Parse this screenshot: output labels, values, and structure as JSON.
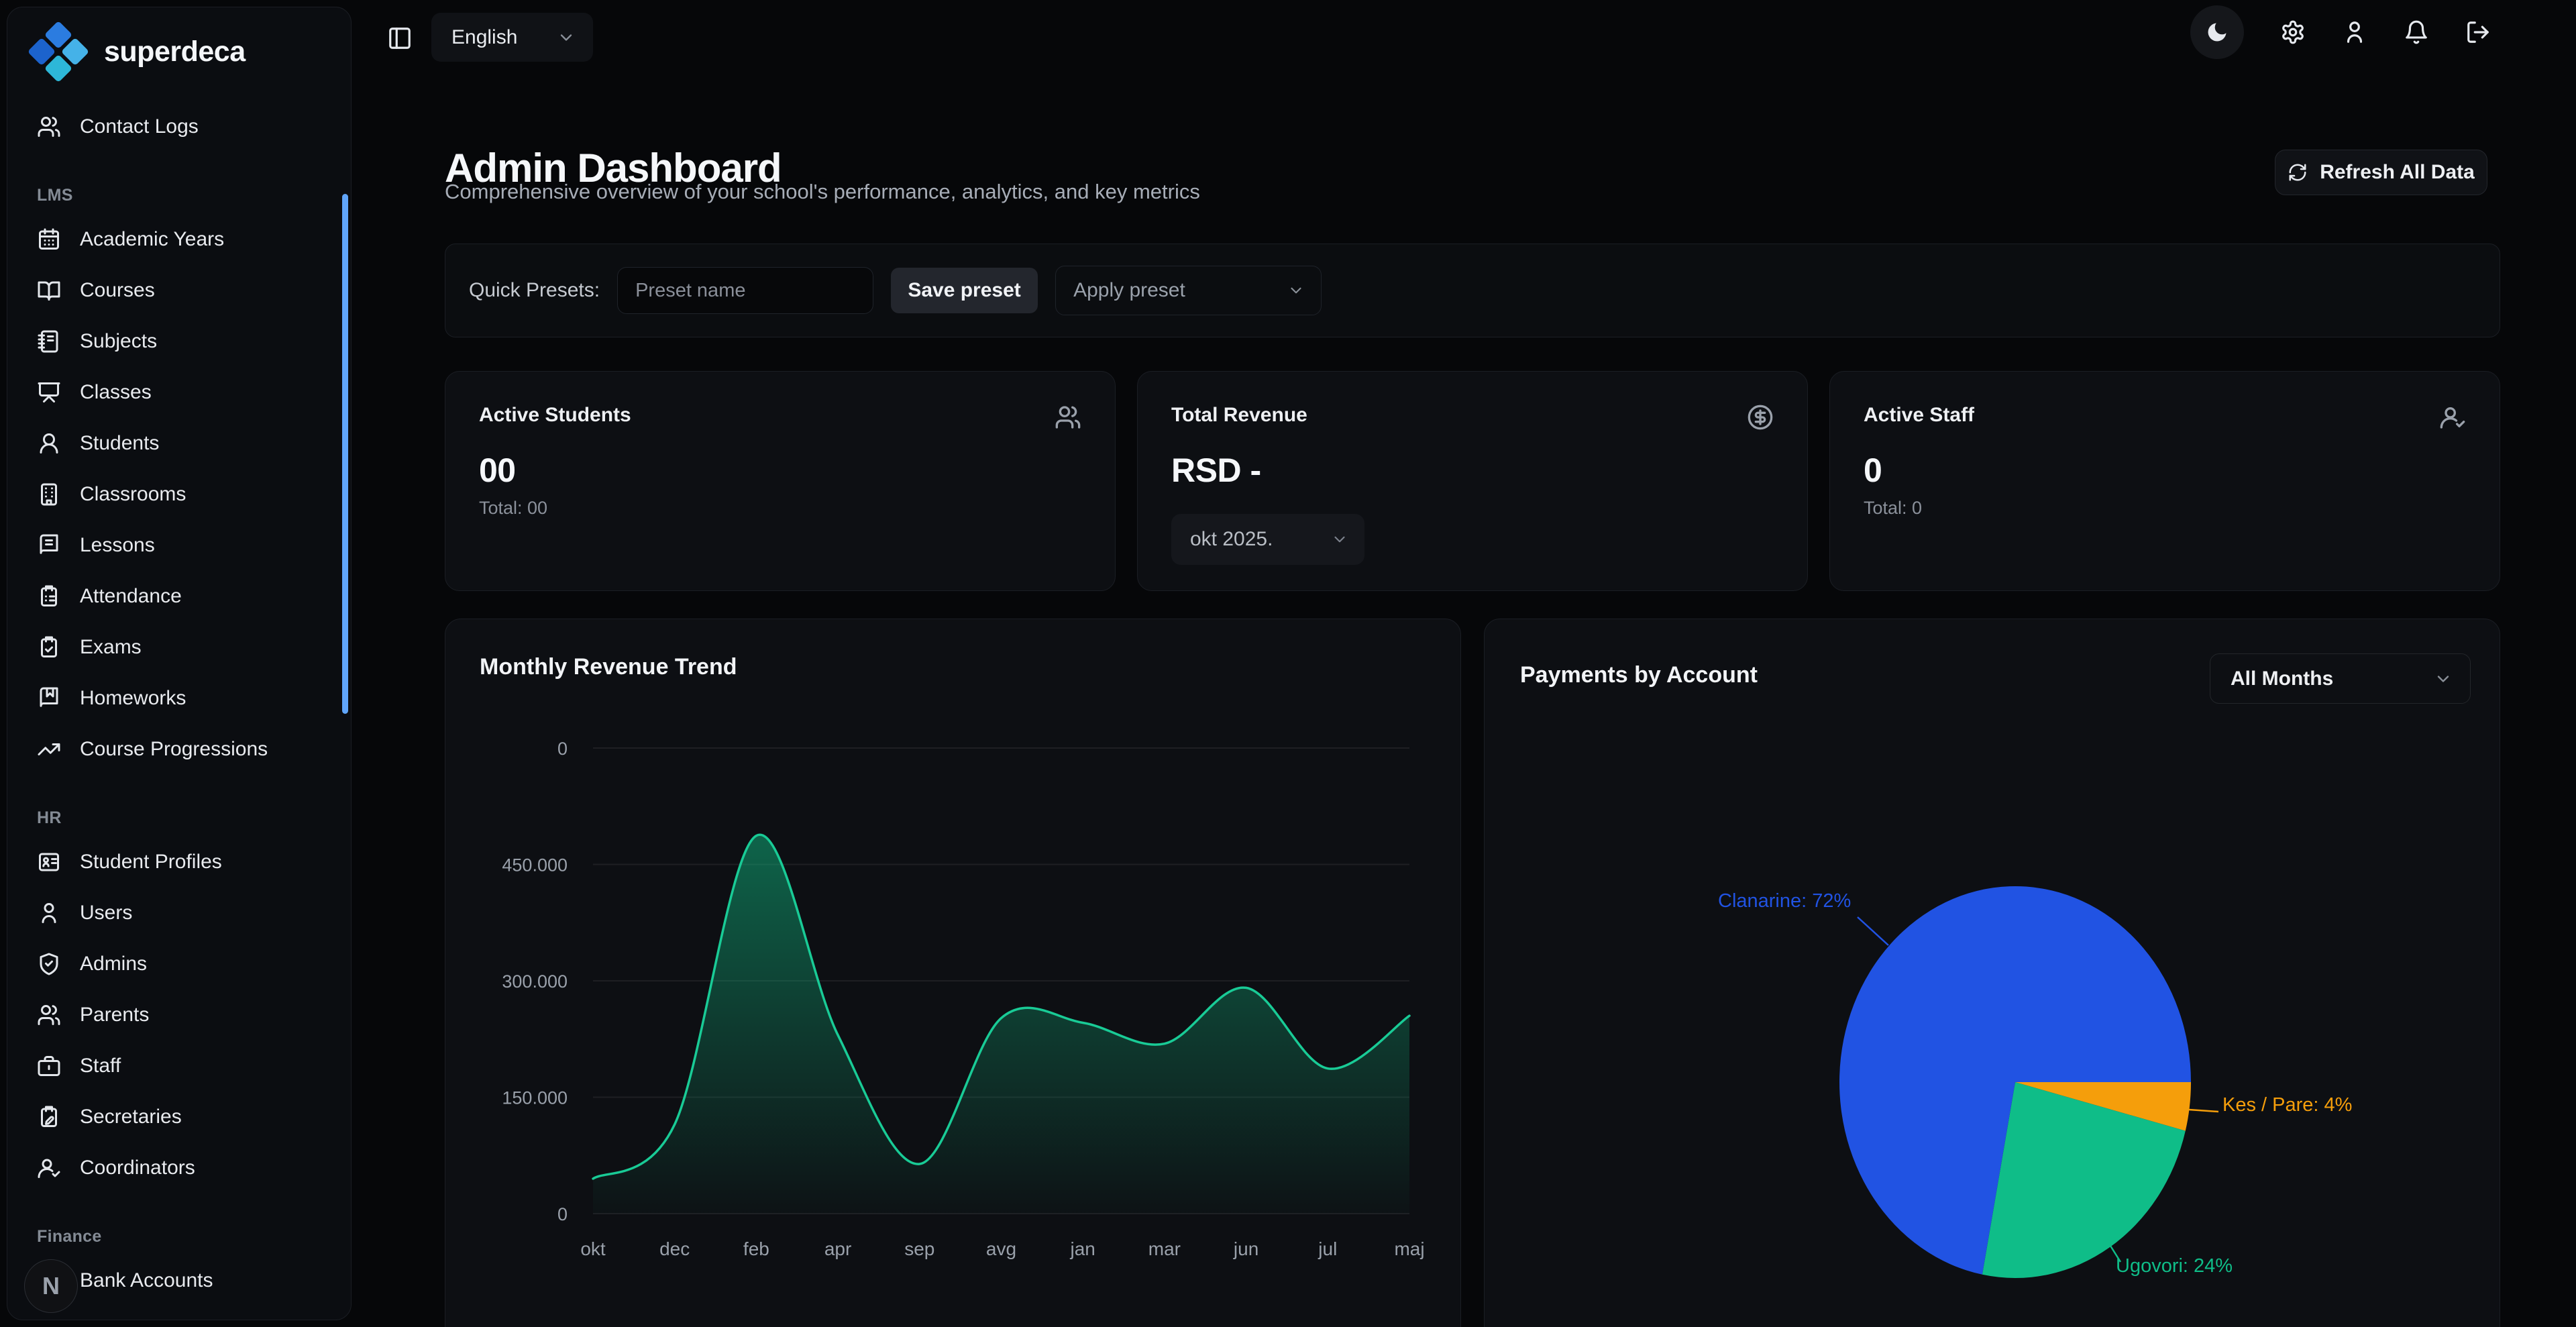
{
  "sidebar": {
    "logo_text": "superdeca",
    "top_items": [
      {
        "icon": "users",
        "label": "Contact Logs"
      }
    ],
    "sections": [
      {
        "title": "LMS",
        "items": [
          {
            "icon": "calendar",
            "label": "Academic Years"
          },
          {
            "icon": "book-open",
            "label": "Courses"
          },
          {
            "icon": "notebook",
            "label": "Subjects"
          },
          {
            "icon": "presentation",
            "label": "Classes"
          },
          {
            "icon": "user-round",
            "label": "Students"
          },
          {
            "icon": "building",
            "label": "Classrooms"
          },
          {
            "icon": "book-text",
            "label": "Lessons"
          },
          {
            "icon": "clipboard-list",
            "label": "Attendance"
          },
          {
            "icon": "clipboard-check",
            "label": "Exams"
          },
          {
            "icon": "book-marked",
            "label": "Homeworks"
          },
          {
            "icon": "trending-up",
            "label": "Course Progressions"
          }
        ]
      },
      {
        "title": "HR",
        "items": [
          {
            "icon": "id-card",
            "label": "Student Profiles"
          },
          {
            "icon": "user",
            "label": "Users"
          },
          {
            "icon": "shield-check",
            "label": "Admins"
          },
          {
            "icon": "users",
            "label": "Parents"
          },
          {
            "icon": "briefcase",
            "label": "Staff"
          },
          {
            "icon": "clipboard-pen",
            "label": "Secretaries"
          },
          {
            "icon": "user-check",
            "label": "Coordinators"
          }
        ]
      },
      {
        "title": "Finance",
        "items": [
          {
            "icon": "landmark",
            "label": "Bank Accounts"
          }
        ]
      }
    ]
  },
  "topbar": {
    "sidebar_toggle_icon": "panel-left",
    "language": "English",
    "language_chevron_icon": "chevron-down",
    "actions": [
      {
        "icon": "moon",
        "name": "theme-toggle-button",
        "circle": true
      },
      {
        "icon": "settings",
        "name": "settings-button"
      },
      {
        "icon": "user",
        "name": "profile-button"
      },
      {
        "icon": "bell",
        "name": "notifications-button"
      },
      {
        "icon": "log-out",
        "name": "logout-button"
      }
    ]
  },
  "header": {
    "title": "Admin Dashboard",
    "subtitle": "Comprehensive overview of your school's performance, analytics, and key metrics",
    "refresh_label": "Refresh All Data",
    "refresh_icon": "refresh"
  },
  "presets": {
    "label": "Quick Presets:",
    "input_placeholder": "Preset name",
    "save_label": "Save preset",
    "apply_label": "Apply preset"
  },
  "stats": [
    {
      "title": "Active Students",
      "icon": "users",
      "value": "00",
      "total": "Total: 00"
    },
    {
      "title": "Total Revenue",
      "icon": "dollar-circle",
      "value": "RSD -",
      "month_selector": "okt 2025."
    },
    {
      "title": "Active Staff",
      "icon": "user-check",
      "value": "0",
      "total": "Total: 0"
    }
  ],
  "charts": {
    "revenue": {
      "title": "Monthly Revenue Trend",
      "chart_data": {
        "type": "line",
        "title": "Monthly Revenue Trend",
        "categories": [
          "okt",
          "dec",
          "feb",
          "apr",
          "sep",
          "avg",
          "jan",
          "mar",
          "jun",
          "jul",
          "maj"
        ],
        "values": [
          45000,
          115000,
          487000,
          230000,
          64000,
          252000,
          246000,
          219000,
          291000,
          187000,
          255000
        ],
        "ytick_labels_top_to_bottom": [
          "0",
          "450.000",
          "300.000",
          "150.000",
          "0"
        ],
        "y_axis_top_value": 600000,
        "ylim": [
          0,
          600000
        ],
        "xlabel": "",
        "ylabel": "",
        "grid": "horizontal",
        "line_color": "#19cb96",
        "area_fill_color": "#10b981"
      }
    },
    "payments": {
      "title": "Payments by Account",
      "filter_label": "All Months",
      "filter_chevron_icon": "chevron-down",
      "chart_data": {
        "type": "pie",
        "title": "Payments by Account",
        "slices": [
          {
            "label": "Clanarine",
            "value_pct": 72,
            "color": "#2153e3",
            "display": "Clanarine: 72%"
          },
          {
            "label": "Kes / Pare",
            "value_pct": 4,
            "color": "#f59e0b",
            "display": "Kes / Pare: 4%"
          },
          {
            "label": "Ugovori",
            "value_pct": 24,
            "color": "#0fbd88",
            "display": "Ugovori: 24%"
          }
        ],
        "start_angle": "east",
        "direction": "clockwise",
        "draw_order_from_east": [
          "Kes / Pare",
          "Ugovori",
          "Clanarine"
        ],
        "legend": "none"
      }
    }
  },
  "misc": {
    "dev_badge_letter": "N",
    "sidebar_scrollbar_color": "#60a5fa"
  },
  "colors": {
    "page_bg": "#060709",
    "card_bg": "#0d0f13",
    "border": "#1b1e24",
    "muted_text": "#9aa1ab",
    "accent_blue": "#2153e3",
    "accent_green": "#0fbd88",
    "accent_orange": "#f59e0b",
    "line_green": "#19cb96"
  }
}
